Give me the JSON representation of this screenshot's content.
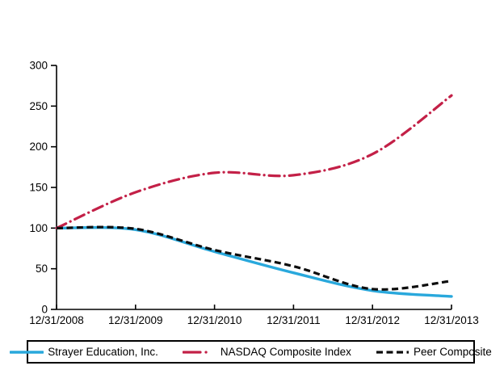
{
  "chart_data": {
    "type": "line",
    "title": "",
    "xlabel": "",
    "ylabel": "",
    "categories": [
      "12/31/2008",
      "12/31/2009",
      "12/31/2010",
      "12/31/2011",
      "12/31/2012",
      "12/31/2013"
    ],
    "series": [
      {
        "name": "Strayer Education, Inc.",
        "values": [
          100,
          98,
          71,
          45,
          23,
          16
        ],
        "color": "#29A8DC",
        "style": "solid"
      },
      {
        "name": "NASDAQ Composite Index",
        "values": [
          100,
          144,
          168,
          165,
          191,
          263
        ],
        "color": "#C32047",
        "style": "dash-dot"
      },
      {
        "name": "Peer Composite",
        "values": [
          100,
          99,
          73,
          53,
          25,
          35
        ],
        "color": "#0d0d0d",
        "style": "dashed"
      }
    ],
    "ylim": [
      0,
      300
    ],
    "y_ticks": [
      0,
      50,
      100,
      150,
      200,
      250,
      300
    ],
    "grid": false,
    "legend_position": "bottom",
    "axis_color": "#000000"
  }
}
